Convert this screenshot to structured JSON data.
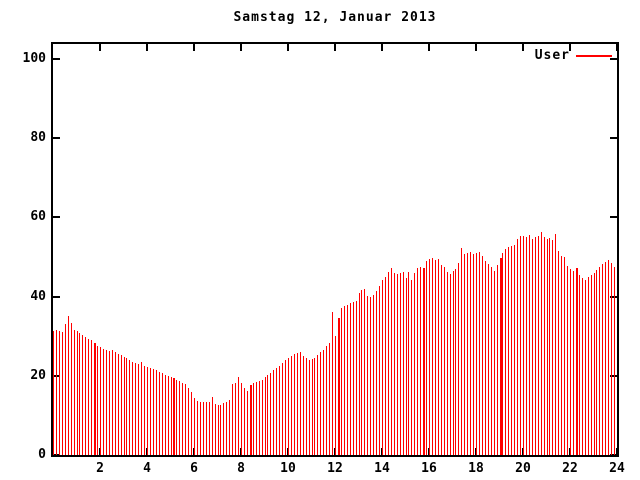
{
  "title": "Samstag 12, Januar 2013",
  "legend": {
    "label": "User",
    "color": "#ff0000"
  },
  "colors": {
    "bar": "#ff0000",
    "axis": "#000000",
    "background": "#ffffff",
    "text": "#000000"
  },
  "chart_data": {
    "type": "bar",
    "title": "Samstag 12, Januar 2013",
    "series_name": "User",
    "x_unit": "hour of day",
    "x_start_hours": 0,
    "x_step_hours": 0.125,
    "xlim": [
      0,
      24
    ],
    "ylim": [
      0,
      100
    ],
    "x_ticks": [
      2,
      4,
      6,
      8,
      10,
      12,
      14,
      16,
      18,
      20,
      22,
      24
    ],
    "y_ticks": [
      0,
      20,
      40,
      60,
      80,
      100
    ],
    "grid": false,
    "legend_position": "top-right-inside",
    "values": [
      31.3,
      31.5,
      31.2,
      31.0,
      33.0,
      35.0,
      33.4,
      31.6,
      31.2,
      30.8,
      30.2,
      29.8,
      29.4,
      29.0,
      28.3,
      27.6,
      27.2,
      26.8,
      26.5,
      26.3,
      26.6,
      26.0,
      25.6,
      25.2,
      24.8,
      24.4,
      24.0,
      23.6,
      23.3,
      23.1,
      23.4,
      22.6,
      22.3,
      22.0,
      21.7,
      21.4,
      21.0,
      20.7,
      20.3,
      20.0,
      19.7,
      19.4,
      19.0,
      18.6,
      18.3,
      18.0,
      16.8,
      15.8,
      14.5,
      13.6,
      13.4,
      13.3,
      13.4,
      13.3,
      14.6,
      13.0,
      12.7,
      12.6,
      13.2,
      13.5,
      13.8,
      18.0,
      18.3,
      19.7,
      18.2,
      16.8,
      16.1,
      17.7,
      18.1,
      18.4,
      18.7,
      19.0,
      19.6,
      20.2,
      20.8,
      21.5,
      22.0,
      22.4,
      23.2,
      24.0,
      24.6,
      25.0,
      25.4,
      25.8,
      26.0,
      25.0,
      24.4,
      23.9,
      24.2,
      24.5,
      25.3,
      26.0,
      26.6,
      27.6,
      28.4,
      36.0,
      30.0,
      34.6,
      37.2,
      37.6,
      37.9,
      38.3,
      38.6,
      39.0,
      41.0,
      41.6,
      42.0,
      40.2,
      39.9,
      40.3,
      41.3,
      42.8,
      44.3,
      44.9,
      46.3,
      47.2,
      46.0,
      45.6,
      45.9,
      46.1,
      44.8,
      46.2,
      44.3,
      46.0,
      47.2,
      47.5,
      47.2,
      49.0,
      49.4,
      49.7,
      49.3,
      49.5,
      48.0,
      47.6,
      46.2,
      45.8,
      46.4,
      47.0,
      48.4,
      52.3,
      50.7,
      51.0,
      51.2,
      50.8,
      51.0,
      51.3,
      50.2,
      49.0,
      48.2,
      47.6,
      46.4,
      48.0,
      49.7,
      51.0,
      52.0,
      52.4,
      52.8,
      53.0,
      54.6,
      55.2,
      55.4,
      55.0,
      55.5,
      54.6,
      55.0,
      55.3,
      56.3,
      55.0,
      54.5,
      54.8,
      54.2,
      55.8,
      51.6,
      50.3,
      50.0,
      47.8,
      47.0,
      46.5,
      47.2,
      45.5,
      44.6,
      44.2,
      45.0,
      45.4,
      46.0,
      46.8,
      47.6,
      48.2,
      48.8,
      49.3,
      48.6,
      47.5
    ],
    "thick_indices": [
      14,
      41,
      67,
      97,
      126,
      152,
      178
    ]
  }
}
